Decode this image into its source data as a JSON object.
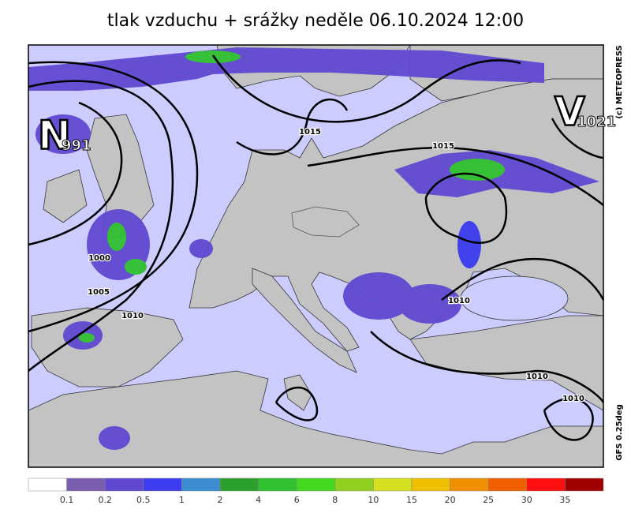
{
  "title": "tlak vzduchu + srážky  neděle 06.10.2024 12:00",
  "centers": [
    {
      "letter": "N",
      "value": "991"
    },
    {
      "letter": "V",
      "value": "1021"
    }
  ],
  "isobar_labels": [
    "1015",
    "1015",
    "1000",
    "1005",
    "1010",
    "1010",
    "1010",
    "1010"
  ],
  "copyright": "(c) METEOPRESS",
  "model": "GFS  0.25deg",
  "colorbar": {
    "colors": [
      "#ffffff",
      "#7a5fb0",
      "#6048d0",
      "#3c3cf0",
      "#3c8cd0",
      "#2ca02c",
      "#30c030",
      "#44d820",
      "#90d020",
      "#d4e020",
      "#f0c000",
      "#f09000",
      "#f06000",
      "#ff1010",
      "#a00000"
    ],
    "labels": [
      "0.1",
      "0.2",
      "0.5",
      "1",
      "2",
      "4",
      "6",
      "8",
      "10",
      "15",
      "20",
      "25",
      "30",
      "35"
    ]
  }
}
